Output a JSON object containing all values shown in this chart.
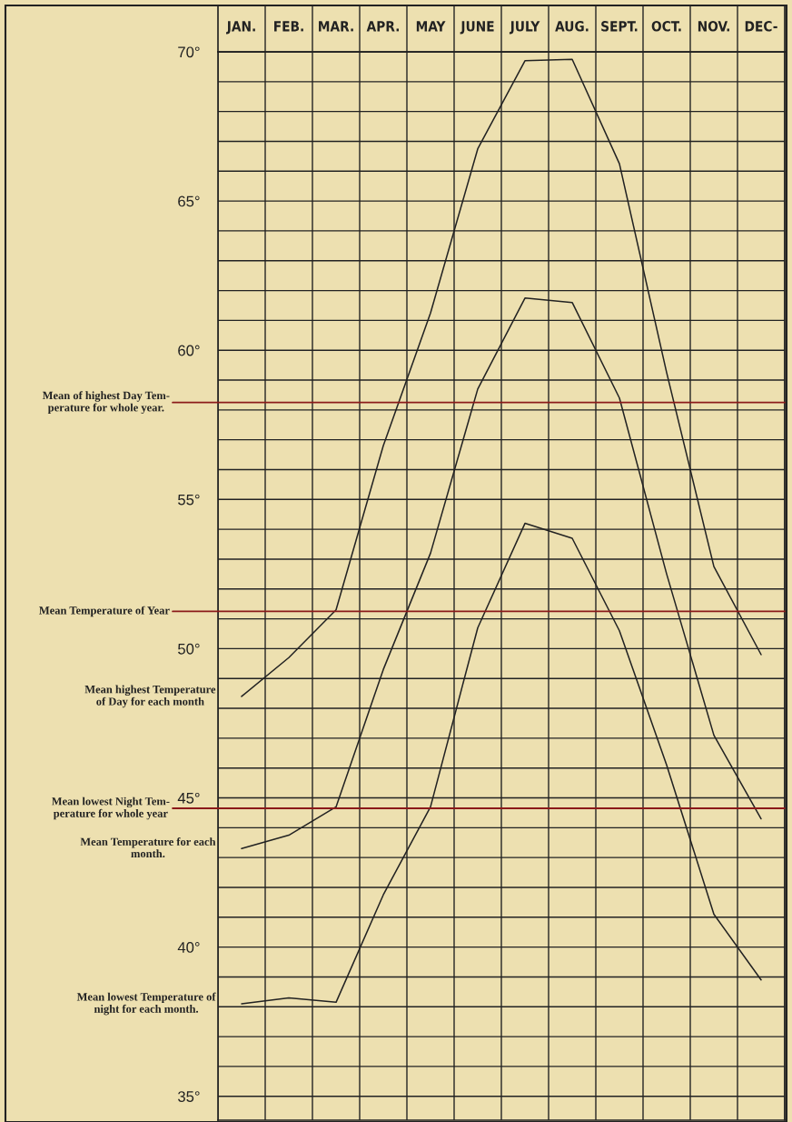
{
  "chart_data": {
    "type": "line",
    "categories": [
      "JAN.",
      "FEB.",
      "MAR.",
      "APR.",
      "MAY",
      "JUNE",
      "JULY",
      "AUG.",
      "SEPT.",
      "OCT.",
      "NOV.",
      "DEC-"
    ],
    "series": [
      {
        "name": "Mean highest Temperature\nof Day for each month",
        "color": "#222222",
        "values": [
          48.4,
          49.7,
          51.3,
          56.8,
          61.25,
          66.75,
          69.7,
          69.75,
          66.25,
          59.25,
          52.75,
          49.8
        ]
      },
      {
        "name": "Mean Temperature for each\nmonth.",
        "color": "#222222",
        "values": [
          43.3,
          43.75,
          44.7,
          49.3,
          53.2,
          58.7,
          61.75,
          61.6,
          58.4,
          52.5,
          47.1,
          44.3
        ]
      },
      {
        "name": "Mean lowest Temperature of\nnight for each month.",
        "color": "#222222",
        "values": [
          38.1,
          38.3,
          38.15,
          41.75,
          44.7,
          50.7,
          54.2,
          53.7,
          50.6,
          46.1,
          41.1,
          38.9
        ]
      }
    ],
    "ref_lines": [
      {
        "axis": "y",
        "value": 58.25,
        "label": "Mean of highest Day Tem-\nperature for whole year.",
        "color": "#8b1a1a"
      },
      {
        "axis": "y",
        "value": 51.25,
        "label": "Mean Temperature of Year",
        "color": "#8b1a1a"
      },
      {
        "axis": "y",
        "value": 44.65,
        "label": "Mean lowest Night Tem-\nperature for whole year",
        "color": "#8b1a1a"
      }
    ],
    "ylim": [
      34.2,
      70
    ],
    "yticks": [
      {
        "value": 35,
        "label": "35°"
      },
      {
        "value": 36,
        "label": null
      },
      {
        "value": 37,
        "label": null
      },
      {
        "value": 38,
        "label": null
      },
      {
        "value": 39,
        "label": null
      },
      {
        "value": 40,
        "label": "40°"
      },
      {
        "value": 41,
        "label": null
      },
      {
        "value": 42,
        "label": null
      },
      {
        "value": 43,
        "label": null
      },
      {
        "value": 44,
        "label": null
      },
      {
        "value": 45,
        "label": "45°"
      },
      {
        "value": 46,
        "label": null
      },
      {
        "value": 47,
        "label": null
      },
      {
        "value": 48,
        "label": null
      },
      {
        "value": 49,
        "label": null
      },
      {
        "value": 50,
        "label": "50°"
      },
      {
        "value": 51,
        "label": null
      },
      {
        "value": 52,
        "label": null
      },
      {
        "value": 53,
        "label": null
      },
      {
        "value": 54,
        "label": null
      },
      {
        "value": 55,
        "label": "55°"
      },
      {
        "value": 56,
        "label": null
      },
      {
        "value": 57,
        "label": null
      },
      {
        "value": 58,
        "label": null
      },
      {
        "value": 59,
        "label": null
      },
      {
        "value": 60,
        "label": "60°"
      },
      {
        "value": 61,
        "label": null
      },
      {
        "value": 62,
        "label": null
      },
      {
        "value": 63,
        "label": null
      },
      {
        "value": 64,
        "label": null
      },
      {
        "value": 65,
        "label": "65°"
      },
      {
        "value": 66,
        "label": null
      },
      {
        "value": 67,
        "label": null
      },
      {
        "value": 68,
        "label": null
      },
      {
        "value": 69,
        "label": null
      },
      {
        "value": 70,
        "label": "70°"
      }
    ],
    "grid": true,
    "line_style": "solid",
    "legend": false
  }
}
